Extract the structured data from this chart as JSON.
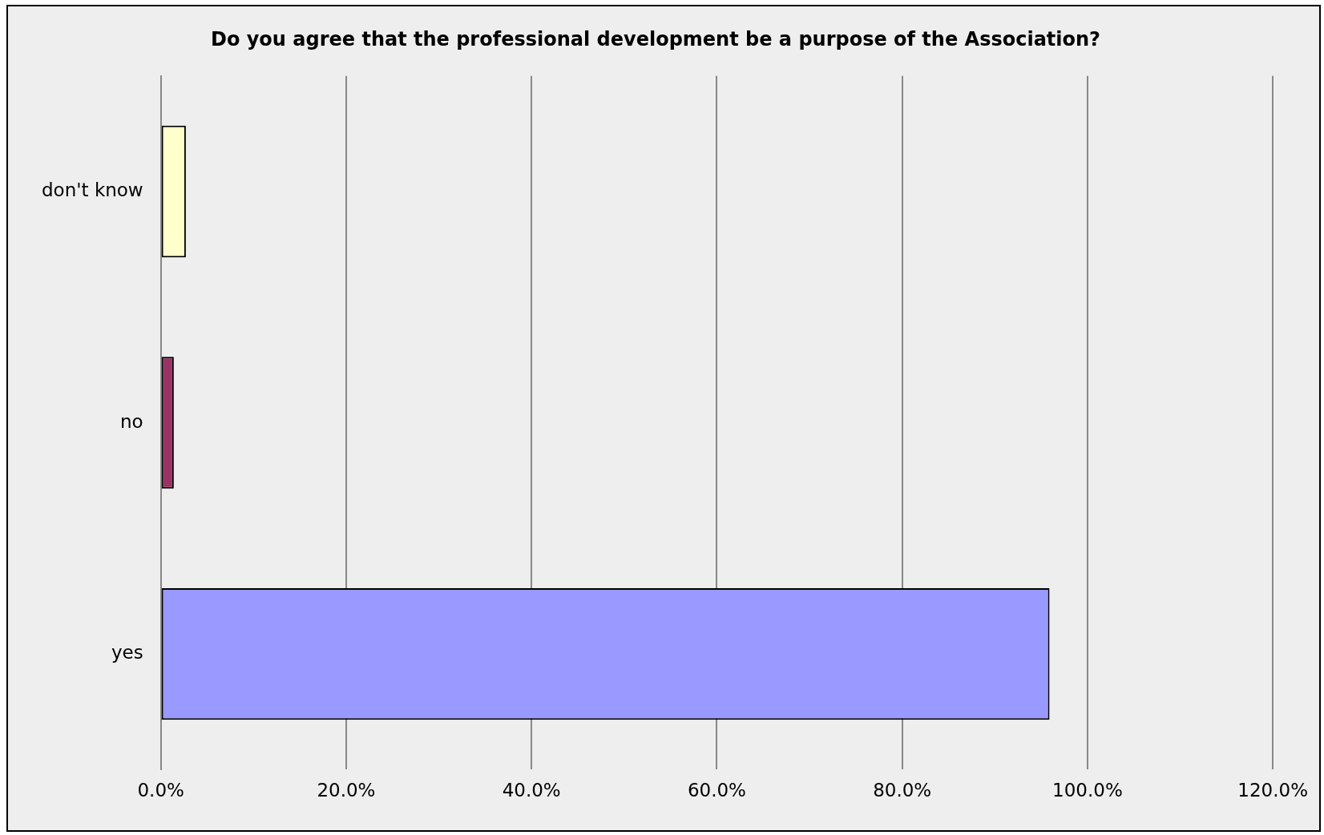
{
  "chart_data": {
    "type": "bar",
    "orientation": "horizontal",
    "title": "Do you agree that the professional development be a purpose of the Association?",
    "categories": [
      "don't know",
      "no",
      "yes"
    ],
    "values": [
      2.7,
      1.4,
      95.9
    ],
    "colors": [
      "#ffffcc",
      "#993366",
      "#9999ff"
    ],
    "xlim": [
      0,
      120
    ],
    "xticks": [
      {
        "value": 0,
        "label": "0.0%"
      },
      {
        "value": 20,
        "label": "20.0%"
      },
      {
        "value": 40,
        "label": "40.0%"
      },
      {
        "value": 60,
        "label": "60.0%"
      },
      {
        "value": 80,
        "label": "80.0%"
      },
      {
        "value": 100,
        "label": "100.0%"
      },
      {
        "value": 120,
        "label": "120.0%"
      }
    ],
    "grid": "x",
    "legend": false
  }
}
